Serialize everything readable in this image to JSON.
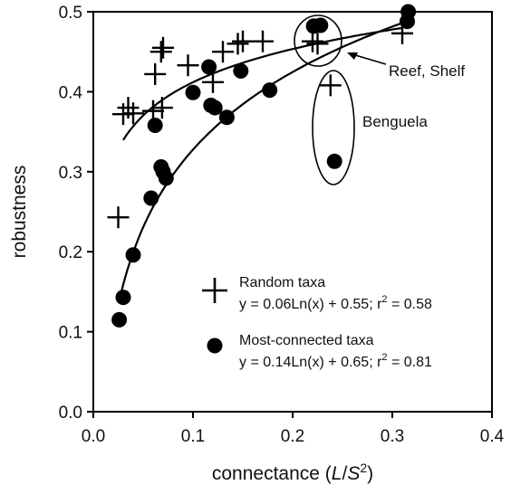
{
  "chart_data": {
    "type": "scatter",
    "title": "",
    "xlabel_main": "connectance (",
    "xlabel_italic": "L",
    "xlabel_slash": "/",
    "xlabel_italic2": "S",
    "xlabel_sup": "2",
    "xlabel_close": ")",
    "ylabel": "robustness",
    "xlim": [
      0.0,
      0.4
    ],
    "ylim": [
      0.0,
      0.5
    ],
    "xticks": [
      0.0,
      0.1,
      0.2,
      0.3,
      0.4
    ],
    "xtick_labels": [
      "0.0",
      "0.1",
      "0.2",
      "0.3",
      "0.4"
    ],
    "yticks": [
      0.0,
      0.1,
      0.2,
      0.3,
      0.4,
      0.5
    ],
    "ytick_labels": [
      "0.0",
      "0.1",
      "0.2",
      "0.3",
      "0.4",
      "0.5"
    ],
    "grid": false,
    "legend_position": "bottom-right",
    "series": [
      {
        "name": "Random taxa",
        "marker": "plus",
        "equation": "y = 0.06Ln(x) + 0.55; r",
        "r2_sup": "2",
        "r2_value": " = 0.58",
        "fit": {
          "a": 0.06,
          "b": 0.55
        },
        "points": [
          {
            "x": 0.025,
            "y": 0.243
          },
          {
            "x": 0.03,
            "y": 0.372
          },
          {
            "x": 0.035,
            "y": 0.38
          },
          {
            "x": 0.04,
            "y": 0.373
          },
          {
            "x": 0.06,
            "y": 0.376
          },
          {
            "x": 0.062,
            "y": 0.422
          },
          {
            "x": 0.068,
            "y": 0.45
          },
          {
            "x": 0.07,
            "y": 0.455
          },
          {
            "x": 0.069,
            "y": 0.38
          },
          {
            "x": 0.095,
            "y": 0.433
          },
          {
            "x": 0.12,
            "y": 0.412
          },
          {
            "x": 0.13,
            "y": 0.45
          },
          {
            "x": 0.145,
            "y": 0.46
          },
          {
            "x": 0.15,
            "y": 0.463
          },
          {
            "x": 0.17,
            "y": 0.463
          },
          {
            "x": 0.22,
            "y": 0.463
          },
          {
            "x": 0.225,
            "y": 0.46
          },
          {
            "x": 0.238,
            "y": 0.408
          },
          {
            "x": 0.31,
            "y": 0.473
          }
        ]
      },
      {
        "name": "Most-connected taxa",
        "marker": "circle",
        "equation": "y = 0.14Ln(x) + 0.65; r",
        "r2_sup": "2",
        "r2_value": " = 0.81",
        "fit": {
          "a": 0.14,
          "b": 0.65
        },
        "points": [
          {
            "x": 0.026,
            "y": 0.115
          },
          {
            "x": 0.03,
            "y": 0.143
          },
          {
            "x": 0.04,
            "y": 0.196
          },
          {
            "x": 0.058,
            "y": 0.267
          },
          {
            "x": 0.062,
            "y": 0.358
          },
          {
            "x": 0.068,
            "y": 0.306
          },
          {
            "x": 0.07,
            "y": 0.3
          },
          {
            "x": 0.073,
            "y": 0.292
          },
          {
            "x": 0.1,
            "y": 0.399
          },
          {
            "x": 0.116,
            "y": 0.431
          },
          {
            "x": 0.118,
            "y": 0.383
          },
          {
            "x": 0.122,
            "y": 0.38
          },
          {
            "x": 0.134,
            "y": 0.368
          },
          {
            "x": 0.148,
            "y": 0.426
          },
          {
            "x": 0.177,
            "y": 0.402
          },
          {
            "x": 0.221,
            "y": 0.482
          },
          {
            "x": 0.228,
            "y": 0.483
          },
          {
            "x": 0.242,
            "y": 0.313
          },
          {
            "x": 0.315,
            "y": 0.488
          },
          {
            "x": 0.316,
            "y": 0.5
          }
        ]
      }
    ],
    "annotations": [
      {
        "text": "Reef, Shelf"
      },
      {
        "text": "Benguela"
      }
    ]
  }
}
